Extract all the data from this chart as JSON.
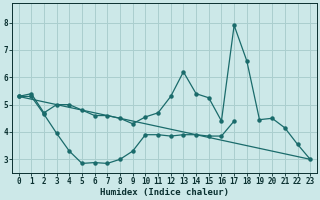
{
  "xlabel": "Humidex (Indice chaleur)",
  "bg_color": "#cce8e8",
  "grid_color": "#aacece",
  "line_color": "#1a6b6b",
  "xlim": [
    -0.5,
    23.5
  ],
  "ylim": [
    2.5,
    8.7
  ],
  "yticks": [
    3,
    4,
    5,
    6,
    7,
    8
  ],
  "xticks": [
    0,
    1,
    2,
    3,
    4,
    5,
    6,
    7,
    8,
    9,
    10,
    11,
    12,
    13,
    14,
    15,
    16,
    17,
    18,
    19,
    20,
    21,
    22,
    23
  ],
  "line1_x": [
    0,
    1,
    2,
    3,
    4,
    5,
    6,
    7,
    8,
    9,
    10,
    11,
    12,
    13,
    14,
    15,
    16,
    17,
    18,
    19,
    20,
    21,
    22,
    23
  ],
  "line1_y": [
    5.3,
    5.4,
    4.7,
    5.0,
    5.0,
    4.8,
    4.6,
    4.6,
    4.5,
    4.3,
    4.55,
    4.7,
    5.3,
    6.2,
    5.4,
    5.25,
    4.4,
    7.9,
    6.6,
    4.45,
    4.5,
    4.15,
    3.55,
    3.0
  ],
  "line2_x": [
    0,
    1,
    2,
    3,
    4,
    5,
    6,
    7,
    8,
    9,
    10,
    11,
    12,
    13,
    14,
    15,
    16,
    17
  ],
  "line2_y": [
    5.3,
    5.3,
    4.65,
    3.95,
    3.3,
    2.85,
    2.88,
    2.85,
    3.0,
    3.3,
    3.9,
    3.9,
    3.85,
    3.9,
    3.9,
    3.85,
    3.85,
    4.4
  ],
  "line3_x": [
    0,
    23
  ],
  "line3_y": [
    5.3,
    3.0
  ]
}
